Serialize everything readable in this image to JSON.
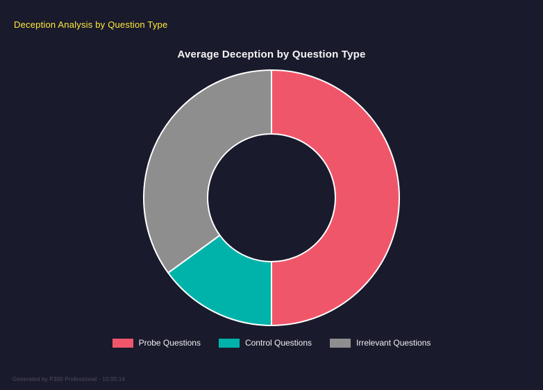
{
  "page": {
    "header": "Deception Analysis by Question Type",
    "footer": "Generated by P300 Professional - 10:05:14"
  },
  "colors": {
    "background": "#1a1a2d",
    "header_text": "#ffeb3b",
    "title_text": "#f5f5f5",
    "legend_text": "#f0f0f0",
    "footer_text": "#4e4e5e"
  },
  "chart_data": {
    "type": "pie",
    "donut": true,
    "cutout_percent": 50,
    "title": "Average Deception by Question Type",
    "labels": [
      "Probe Questions",
      "Control Questions",
      "Irrelevant Questions"
    ],
    "values": [
      50,
      15,
      35
    ],
    "unit": "percent of total",
    "colors": [
      "#f0566a",
      "#00b3aa",
      "#8e8e8e"
    ],
    "border_color": "#ffffff",
    "border_width": 2,
    "start_angle_deg": 0,
    "direction": "clockwise",
    "legend_position": "bottom"
  }
}
